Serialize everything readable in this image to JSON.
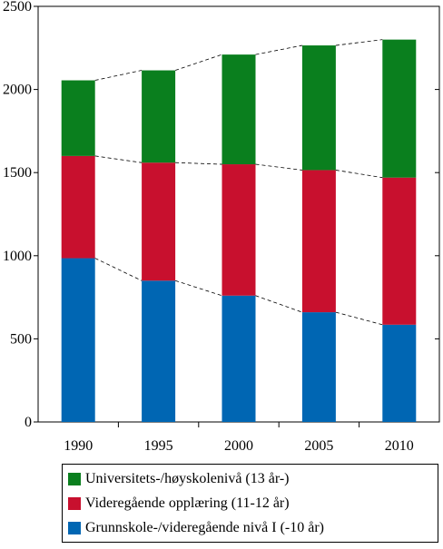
{
  "chart_data": {
    "type": "bar",
    "stacked": true,
    "categories": [
      "1990",
      "1995",
      "2000",
      "2005",
      "2010"
    ],
    "series": [
      {
        "name": "Grunnskole-/videregående nivå I (-10 år)",
        "color": "#0066b3",
        "values": [
          985,
          850,
          760,
          660,
          585
        ]
      },
      {
        "name": "Videregående opplæring (11-12 år)",
        "color": "#c8102e",
        "values": [
          615,
          710,
          790,
          855,
          885
        ]
      },
      {
        "name": "Universitets-/høyskolenivå (13 år-)",
        "color": "#0a7f1e",
        "values": [
          455,
          555,
          660,
          750,
          830
        ]
      }
    ],
    "ylim": [
      0,
      2500
    ],
    "yticks": [
      "0",
      "500",
      "1000",
      "1500",
      "2000",
      "2500"
    ],
    "connector_lines": true,
    "grid": false,
    "legend_position": "bottom"
  },
  "legend": {
    "items": [
      {
        "label": "Universitets-/høyskolenivå (13 år-)",
        "color": "#0a7f1e"
      },
      {
        "label": "Videregående opplæring (11-12 år)",
        "color": "#c8102e"
      },
      {
        "label": "Grunnskole-/videregående nivå I (-10 år)",
        "color": "#0066b3"
      }
    ]
  }
}
